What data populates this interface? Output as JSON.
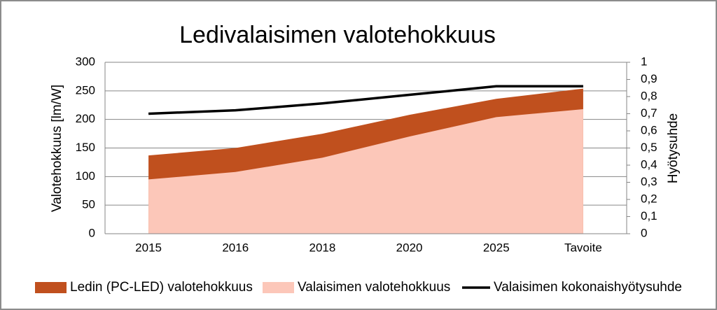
{
  "chart_data": {
    "type": "area-line",
    "title": "Ledivalaisimen valotehokkuus",
    "y_label": "Valotehokkuus  [lm/W]",
    "y2_label": "Hyötysuhde",
    "categories": [
      "2015",
      "2016",
      "2018",
      "2020",
      "2025",
      "Tavoite"
    ],
    "series": [
      {
        "name": "Ledin (PC-LED) valotehokkuus",
        "type": "area",
        "color": "#c0501e",
        "values": [
          137,
          150,
          175,
          208,
          236,
          254
        ]
      },
      {
        "name": "Valaisimen valotehokkuus",
        "type": "area",
        "color": "#fcc7b9",
        "values": [
          95,
          108,
          133,
          170,
          204,
          218
        ]
      },
      {
        "name": "Valaisimen kokonaishyötysuhde",
        "type": "line",
        "axis": "y2",
        "color": "#000000",
        "values": [
          0.7,
          0.72,
          0.76,
          0.81,
          0.86,
          0.86
        ]
      }
    ],
    "ylim": [
      0,
      300
    ],
    "yticks": [
      0,
      50,
      100,
      150,
      200,
      250,
      300
    ],
    "y2lim": [
      0,
      1
    ],
    "y2ticks": [
      0,
      {
        "value": 0.1,
        "label": "0,1"
      },
      {
        "value": 0.2,
        "label": "0,2"
      },
      {
        "value": 0.3,
        "label": "0,3"
      },
      {
        "value": 0.4,
        "label": "0,4"
      },
      {
        "value": 0.5,
        "label": "0,5"
      },
      {
        "value": 0.6,
        "label": "0,6"
      },
      {
        "value": 0.7,
        "label": "0,7"
      },
      {
        "value": 0.8,
        "label": "0,8"
      },
      {
        "value": 0.9,
        "label": "0,9"
      },
      1
    ],
    "grid": true,
    "legend": "bottom"
  }
}
